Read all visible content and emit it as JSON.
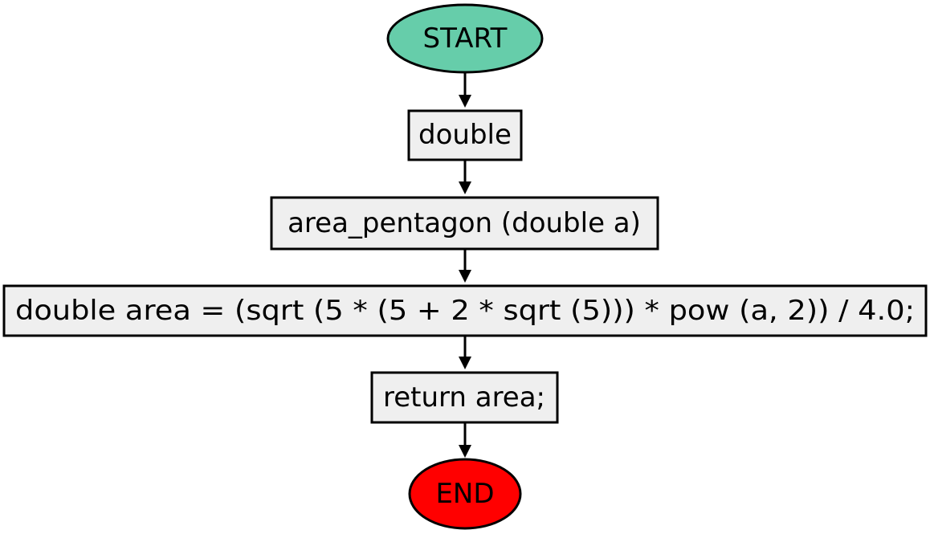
{
  "colors": {
    "start_fill": "#66cdaa",
    "end_fill": "#ff0000",
    "process_fill": "#efefef",
    "stroke": "#000000"
  },
  "nodes": {
    "start": {
      "label": "START",
      "shape": "ellipse"
    },
    "return_type": {
      "label": "double",
      "shape": "rectangle"
    },
    "signature": {
      "label": "area_pentagon (double a)",
      "shape": "rectangle"
    },
    "compute": {
      "label": "double area = (sqrt (5 * (5 + 2 * sqrt (5))) * pow (a, 2)) / 4.0;",
      "shape": "rectangle"
    },
    "return_stmt": {
      "label": "return area;",
      "shape": "rectangle"
    },
    "end": {
      "label": "END",
      "shape": "ellipse"
    }
  },
  "edges": [
    {
      "from": "start",
      "to": "return_type"
    },
    {
      "from": "return_type",
      "to": "signature"
    },
    {
      "from": "signature",
      "to": "compute"
    },
    {
      "from": "compute",
      "to": "return_stmt"
    },
    {
      "from": "return_stmt",
      "to": "end"
    }
  ]
}
